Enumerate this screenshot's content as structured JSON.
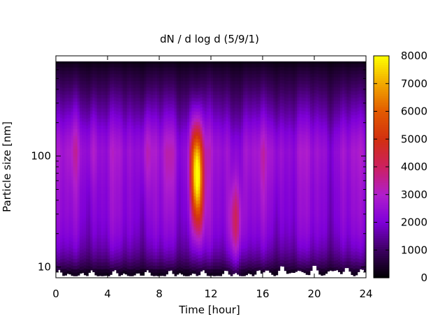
{
  "chart_data": {
    "type": "heatmap",
    "title": "dN / d log d (5/9/1)",
    "xlabel": "Time [hour]",
    "ylabel": "Particle size [nm]",
    "x_range": [
      0,
      24
    ],
    "x_ticks": [
      0,
      4,
      8,
      12,
      16,
      20,
      24
    ],
    "y_scale": "log",
    "y_range": [
      8,
      800
    ],
    "y_ticks": [
      10,
      100
    ],
    "colorbar": {
      "range": [
        0,
        8000
      ],
      "ticks": [
        0,
        1000,
        2000,
        3000,
        4000,
        5000,
        6000,
        7000,
        8000
      ],
      "palette": [
        "#000000",
        "#3c0060",
        "#7e00d8",
        "#b01ecc",
        "#cc2060",
        "#d23010",
        "#e25a00",
        "#f2a800",
        "#ffff00"
      ]
    },
    "background_level": {
      "size_nm": [
        9,
        10,
        12,
        15,
        20,
        30,
        50,
        80,
        110,
        150,
        250,
        400,
        600,
        750
      ],
      "concentration": [
        300,
        800,
        1300,
        1700,
        2000,
        2200,
        2300,
        2450,
        2550,
        2300,
        1600,
        1000,
        500,
        120
      ]
    },
    "events": [
      {
        "time_hour": 10.9,
        "size_nm": 80,
        "peak": 7300
      },
      {
        "time_hour": 11.0,
        "size_nm": 40,
        "peak": 4600
      },
      {
        "time_hour": 13.9,
        "size_nm": 25,
        "peak": 4400
      },
      {
        "time_hour": 7.0,
        "size_nm": 110,
        "peak": 3300
      },
      {
        "time_hour": 1.5,
        "size_nm": 120,
        "peak": 3000
      },
      {
        "time_hour": 2.8,
        "size_nm": 120,
        "peak": 3000
      },
      {
        "time_hour": 8.8,
        "size_nm": 90,
        "peak": 3000
      },
      {
        "time_hour": 16.0,
        "size_nm": 80,
        "peak": 2800
      },
      {
        "time_hour": 17.0,
        "size_nm": 90,
        "peak": 2800
      }
    ],
    "no_data_region": "white gaps near lower size limit (~8–11 nm)"
  }
}
